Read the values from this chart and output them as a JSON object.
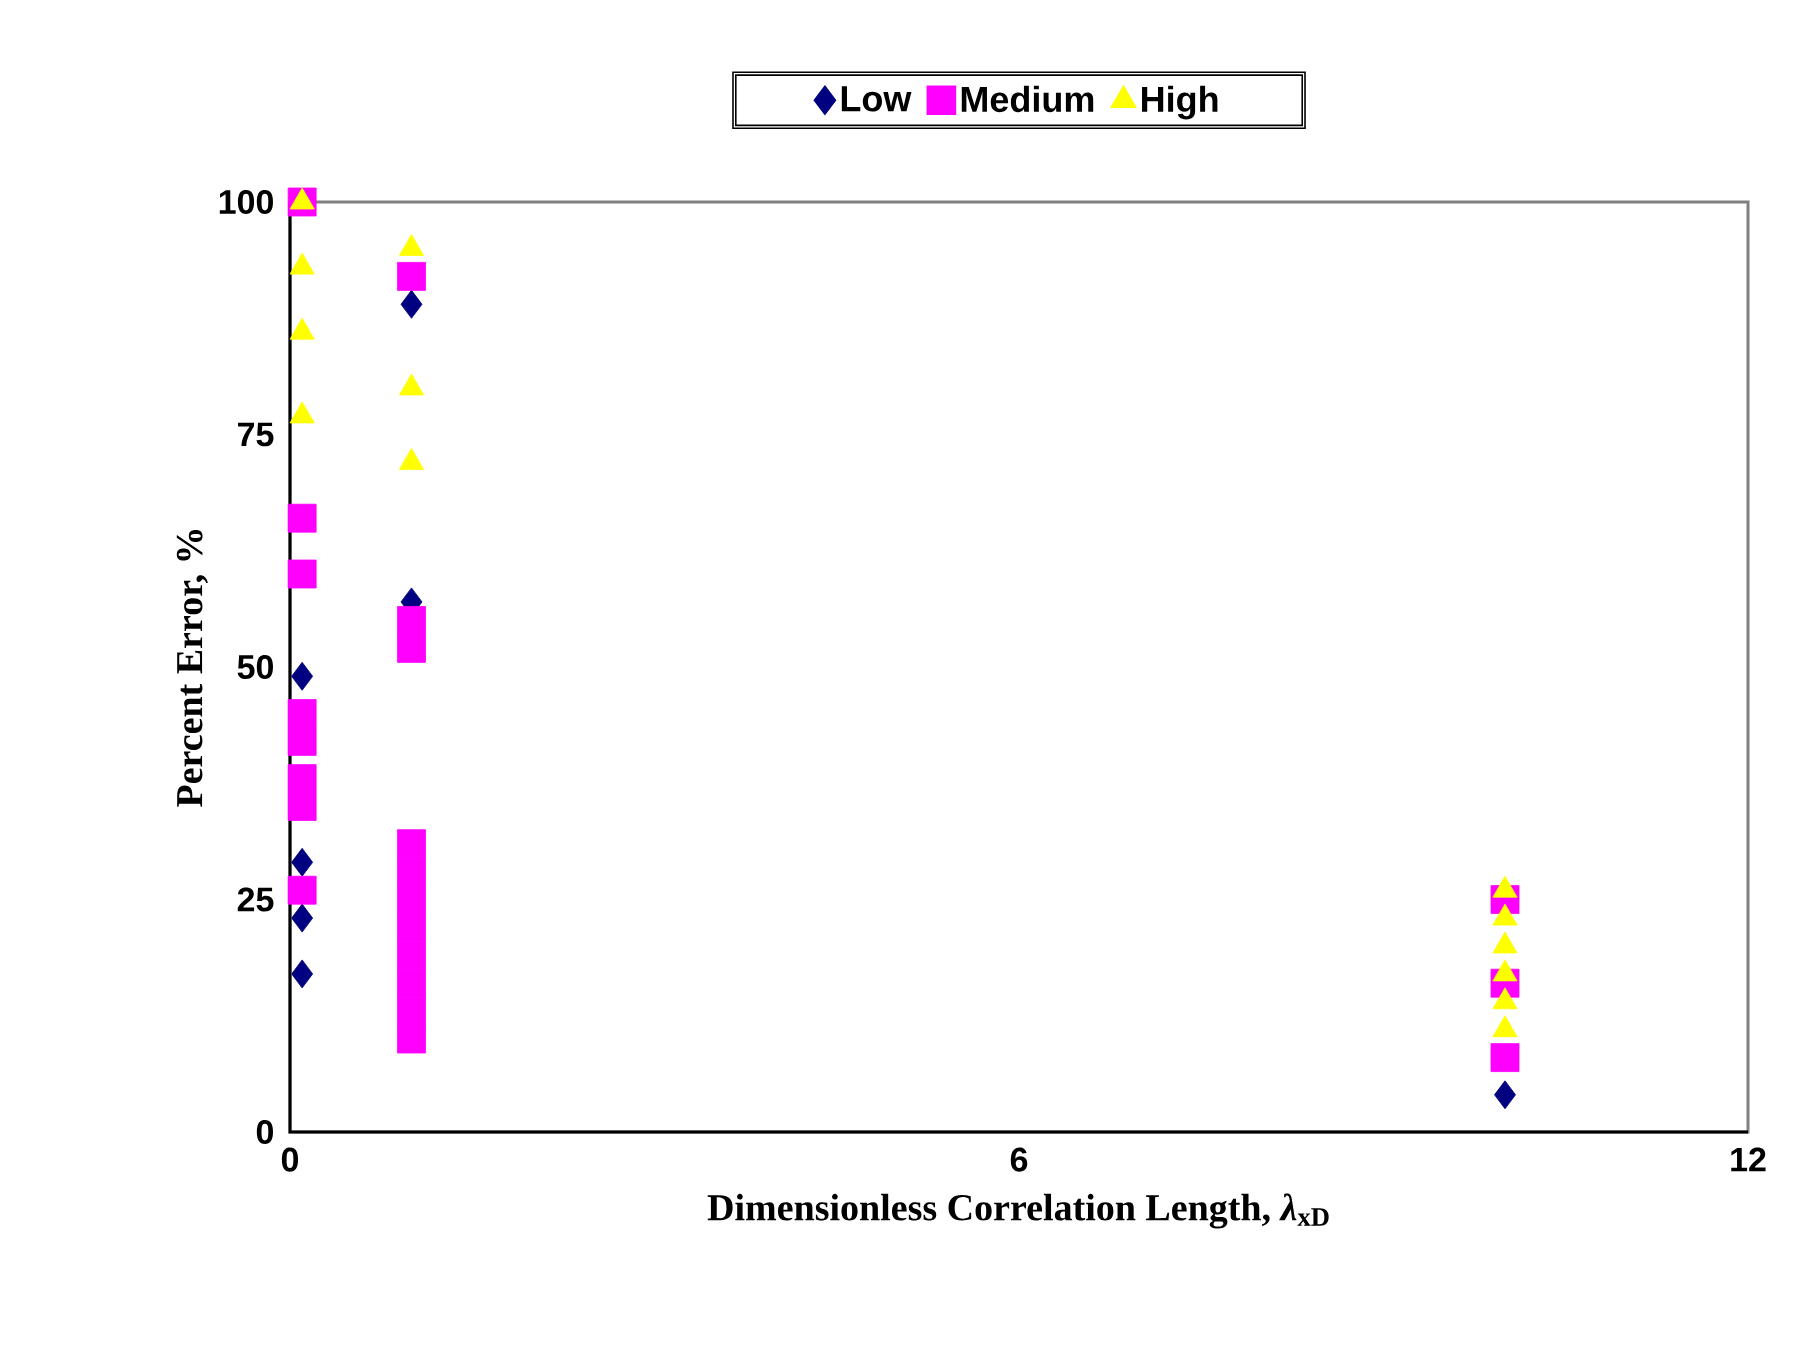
{
  "chart_data": {
    "type": "scatter",
    "xlabel": "Dimensionless Correlation Length, *λ*$_{xD}$",
    "ylabel": "Percent Error, %",
    "xlim": [
      0,
      12
    ],
    "ylim": [
      0,
      100
    ],
    "xticks": [
      0,
      6,
      12
    ],
    "yticks": [
      0,
      25,
      50,
      75,
      100
    ],
    "legend": "top",
    "grid": false,
    "series": [
      {
        "name": "Low",
        "color": "#000080",
        "marker": "diamond",
        "x": [
          0.1,
          0.1,
          0.1,
          0.1,
          1,
          1,
          10
        ],
        "values": [
          17,
          23,
          29,
          49,
          89,
          57,
          4
        ]
      },
      {
        "name": "Medium",
        "color": "#ff00ff",
        "marker": "square",
        "x": [
          0.1,
          0.1,
          0.1,
          0.1,
          0.1,
          0.1,
          0.1,
          0.1,
          1,
          1,
          1,
          1,
          1,
          1,
          1,
          1,
          1,
          1,
          1,
          10,
          10,
          10
        ],
        "values": [
          26,
          35,
          38,
          42,
          45,
          60,
          66,
          100,
          92,
          52,
          55,
          10,
          13,
          16,
          19,
          22,
          25,
          28,
          31,
          8,
          16,
          25
        ]
      },
      {
        "name": "High",
        "color": "#ffff00",
        "marker": "triangle",
        "x": [
          0.1,
          0.1,
          0.1,
          0.1,
          1,
          1,
          1,
          10,
          10,
          10,
          10,
          10,
          10
        ],
        "values": [
          100,
          93,
          86,
          77,
          95,
          80,
          72,
          11,
          14,
          17,
          20,
          23,
          26
        ]
      }
    ]
  }
}
